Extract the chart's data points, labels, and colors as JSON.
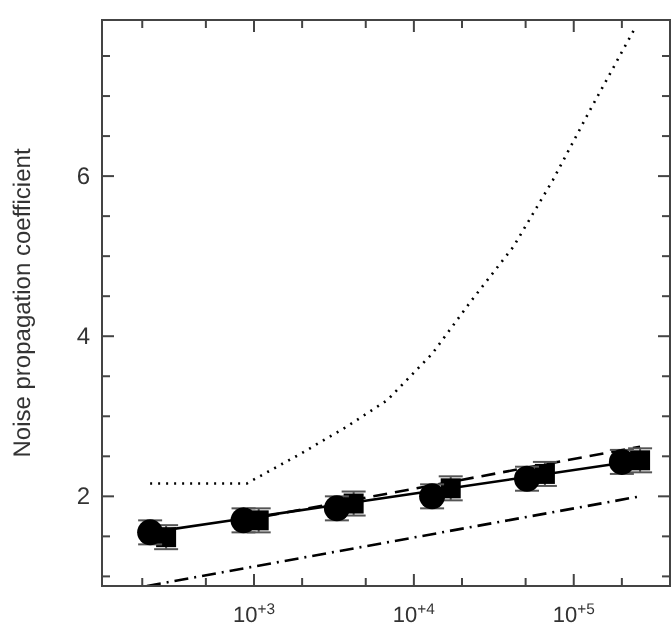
{
  "chart_data": {
    "type": "scatter",
    "ylabel": "Noise propagation coefficient",
    "log": "x",
    "xlim": [
      112,
      400000
    ],
    "ylim": [
      0.88,
      7.95
    ],
    "xticks": [
      {
        "value": 200,
        "label": null
      },
      {
        "value": 500,
        "label": null
      },
      {
        "value": 1000,
        "label": "10$^{+3}$"
      },
      {
        "value": 2000,
        "label": null
      },
      {
        "value": 5000,
        "label": null
      },
      {
        "value": 10000,
        "label": "10$^{+4}$"
      },
      {
        "value": 20000,
        "label": null
      },
      {
        "value": 50000,
        "label": null
      },
      {
        "value": 100000,
        "label": "10$^{+5}$"
      },
      {
        "value": 200000,
        "label": null
      }
    ],
    "yticks": [
      {
        "value": 1,
        "label": null
      },
      {
        "value": 1.5,
        "label": null
      },
      2,
      {
        "value": 2.5,
        "label": null
      },
      {
        "value": 3,
        "label": null
      },
      {
        "value": 3.5,
        "label": null
      },
      4,
      {
        "value": 4.5,
        "label": null
      },
      {
        "value": 5,
        "label": null
      },
      {
        "value": 5.5,
        "label": null
      },
      6,
      {
        "value": 6.5,
        "label": null
      },
      {
        "value": 7,
        "label": null
      },
      {
        "value": 7.5,
        "label": null
      }
    ],
    "grid": false,
    "series": [
      {
        "type": "line",
        "line_style": "dotted",
        "color": "#000000",
        "x": [
          224,
          900,
          1950,
          3800,
          6800,
          13000,
          23000,
          42000,
          74000,
          130000,
          245000
        ],
        "values": [
          2.16,
          2.16,
          2.53,
          2.87,
          3.2,
          3.78,
          4.45,
          5.12,
          5.95,
          6.87,
          7.87
        ]
      },
      {
        "type": "line",
        "line_style": "dashed",
        "color": "#000000",
        "x": [
          860,
          260000
        ],
        "values": [
          1.7,
          2.62
        ]
      },
      {
        "type": "line",
        "line_style": "solid",
        "color": "#000000",
        "x": [
          224,
          260000
        ],
        "values": [
          1.55,
          2.45
        ]
      },
      {
        "type": "line",
        "line_style": "dashdot",
        "color": "#000000",
        "x": [
          214,
          260000
        ],
        "values": [
          0.88,
          2.0
        ]
      },
      {
        "type": "scatter",
        "marker": "square",
        "color": "#000000",
        "x": [
          282,
          1070,
          4200,
          17000,
          66000,
          260000
        ],
        "values": [
          1.49,
          1.7,
          1.91,
          2.1,
          2.28,
          2.45
        ],
        "errors": [
          0.15,
          0.15,
          0.15,
          0.15,
          0.15,
          0.15
        ]
      },
      {
        "type": "scatter",
        "marker": "circle",
        "color": "#000000",
        "x": [
          224,
          860,
          3300,
          13000,
          51000,
          200000
        ],
        "values": [
          1.55,
          1.7,
          1.85,
          2.0,
          2.22,
          2.43
        ],
        "errors": [
          0.15,
          0.15,
          0.15,
          0.15,
          0.15,
          0.15
        ]
      }
    ]
  }
}
